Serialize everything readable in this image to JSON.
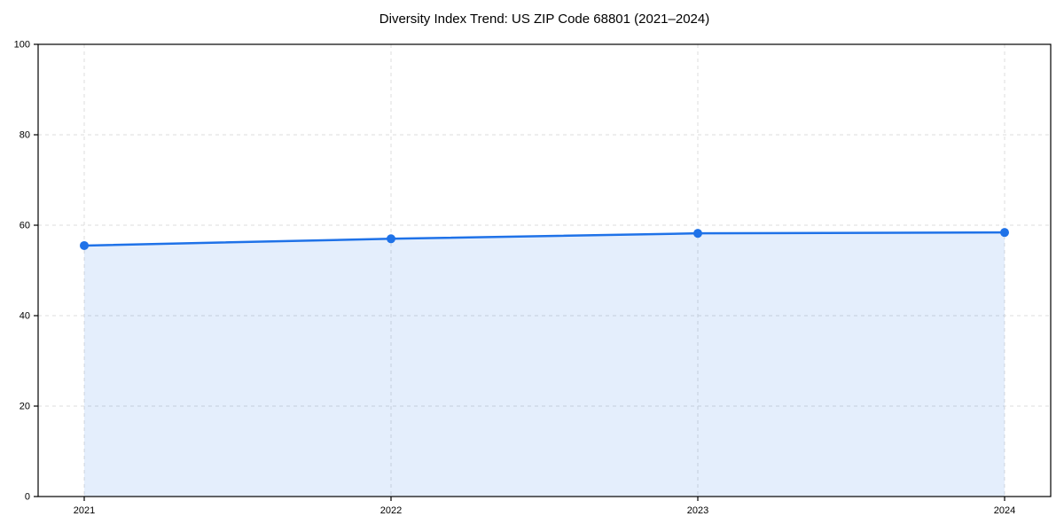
{
  "title": "Diversity Index Trend: US ZIP Code 68801 (2021–2024)",
  "colors": {
    "line": "#1f72e8",
    "marker": "#1f72e8",
    "area_fill": "rgba(31,114,232,0.12)",
    "grid": "#dcdcdc",
    "axis": "#000000",
    "tick_text": "#000000",
    "background": "#ffffff"
  },
  "chart_data": {
    "type": "area",
    "x": [
      "2021",
      "2022",
      "2023",
      "2024"
    ],
    "values": [
      55.5,
      57.0,
      58.2,
      58.4
    ],
    "title": "Diversity Index Trend: US ZIP Code 68801 (2021–2024)",
    "xlabel": "",
    "ylabel": "",
    "ylim": [
      0,
      100
    ],
    "yticks": [
      0,
      20,
      40,
      60,
      80,
      100
    ],
    "xticks": [
      "2021",
      "2022",
      "2023",
      "2024"
    ],
    "grid": true,
    "grid_style": "dashed",
    "legend": false,
    "marker": "circle",
    "line_width": 2.5,
    "marker_radius": 5
  }
}
